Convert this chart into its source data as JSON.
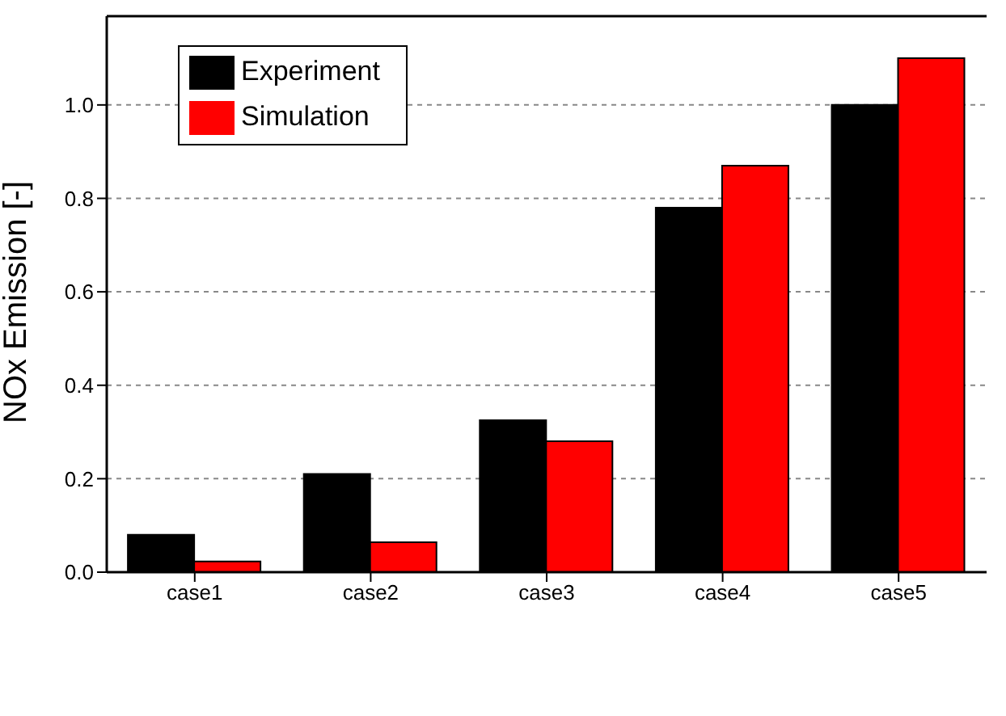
{
  "chart_data": {
    "type": "bar",
    "ylabel": "NOx Emission [-]",
    "categories": [
      "case1",
      "case2",
      "case3",
      "case4",
      "case5"
    ],
    "series": [
      {
        "name": "Experiment",
        "color": "#000000",
        "values": [
          0.08,
          0.21,
          0.325,
          0.78,
          1.0
        ]
      },
      {
        "name": "Simulation",
        "color": "#ff0000",
        "values": [
          0.023,
          0.064,
          0.28,
          0.87,
          1.1
        ]
      }
    ],
    "ylim": [
      0,
      1.19
    ],
    "yticks": [
      {
        "value": 0,
        "label": "0.0"
      },
      {
        "value": 0.2,
        "label": "0.2"
      },
      {
        "value": 0.4,
        "label": "0.4"
      },
      {
        "value": 0.6,
        "label": "0.6"
      },
      {
        "value": 0.8,
        "label": "0.8"
      },
      {
        "value": 1.0,
        "label": "1.0"
      }
    ],
    "grid": "y",
    "legend": "top left"
  }
}
